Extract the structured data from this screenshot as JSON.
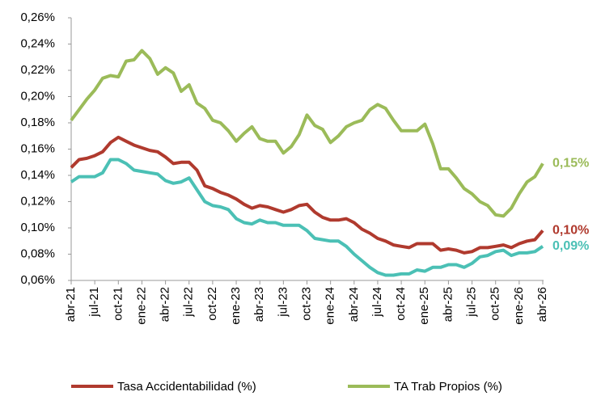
{
  "chart_data": {
    "type": "line",
    "categories": [
      "abr-21",
      null,
      null,
      "jul-21",
      null,
      null,
      "oct-21",
      null,
      null,
      "ene-22",
      null,
      null,
      "abr-22",
      null,
      null,
      "jul-22",
      null,
      null,
      "oct-22",
      null,
      null,
      "ene-23",
      null,
      null,
      "abr-23",
      null,
      null,
      "jul-23",
      null,
      null,
      "oct-23",
      null,
      null,
      "ene-24",
      null,
      null,
      "abr-24",
      null,
      null,
      "jul-24",
      null,
      null,
      "oct-24",
      null,
      null,
      "ene-25",
      null,
      null,
      "abr-25",
      null,
      null,
      "jul-25",
      null,
      null,
      "oct-25",
      null,
      null,
      "ene-26",
      null,
      null,
      "abr-26"
    ],
    "series": [
      {
        "name": "Tasa Accidentabilidad (%)",
        "color": "#b03a2e",
        "end_label": "0,10%",
        "values": [
          0.146,
          0.152,
          0.153,
          0.155,
          0.158,
          0.165,
          0.169,
          0.166,
          0.163,
          0.161,
          0.159,
          0.158,
          0.154,
          0.149,
          0.15,
          0.15,
          0.144,
          0.132,
          0.13,
          0.127,
          0.125,
          0.122,
          0.118,
          0.115,
          0.117,
          0.116,
          0.114,
          0.112,
          0.114,
          0.117,
          0.118,
          0.112,
          0.108,
          0.106,
          0.106,
          0.107,
          0.104,
          0.099,
          0.096,
          0.092,
          0.09,
          0.087,
          0.086,
          0.085,
          0.088,
          0.088,
          0.088,
          0.083,
          0.084,
          0.083,
          0.081,
          0.082,
          0.085,
          0.085,
          0.086,
          0.087,
          0.085,
          0.088,
          0.09,
          0.091,
          0.098
        ]
      },
      {
        "name": "TA Trab Propios (%)",
        "color": "#9bbb59",
        "end_label": "0,15%",
        "values": [
          0.182,
          0.19,
          0.198,
          0.205,
          0.214,
          0.216,
          0.215,
          0.227,
          0.228,
          0.235,
          0.229,
          0.217,
          0.222,
          0.218,
          0.204,
          0.209,
          0.195,
          0.191,
          0.182,
          0.18,
          0.174,
          0.166,
          0.172,
          0.177,
          0.168,
          0.166,
          0.166,
          0.157,
          0.162,
          0.171,
          0.186,
          0.178,
          0.175,
          0.165,
          0.17,
          0.177,
          0.18,
          0.182,
          0.19,
          0.194,
          0.191,
          0.182,
          0.174,
          0.174,
          0.174,
          0.179,
          0.164,
          0.145,
          0.145,
          0.138,
          0.13,
          0.126,
          0.12,
          0.117,
          0.11,
          0.109,
          0.115,
          0.126,
          0.135,
          0.139,
          0.149
        ]
      },
      {
        "color": "#4bc0b5",
        "end_label": "0,09%",
        "values": [
          0.135,
          0.139,
          0.139,
          0.139,
          0.142,
          0.152,
          0.152,
          0.149,
          0.144,
          0.143,
          0.142,
          0.141,
          0.136,
          0.134,
          0.135,
          0.138,
          0.129,
          0.12,
          0.117,
          0.116,
          0.114,
          0.107,
          0.104,
          0.103,
          0.106,
          0.104,
          0.104,
          0.102,
          0.102,
          0.102,
          0.098,
          0.092,
          0.091,
          0.09,
          0.09,
          0.086,
          0.08,
          0.075,
          0.07,
          0.066,
          0.064,
          0.064,
          0.065,
          0.065,
          0.068,
          0.067,
          0.07,
          0.07,
          0.072,
          0.072,
          0.07,
          0.073,
          0.078,
          0.079,
          0.082,
          0.083,
          0.079,
          0.081,
          0.081,
          0.082,
          0.086
        ]
      }
    ],
    "ylim": [
      0.06,
      0.26
    ],
    "yticks": [
      {
        "value": 0.06,
        "label": "0,06%"
      },
      {
        "value": 0.08,
        "label": "0,08%"
      },
      {
        "value": 0.1,
        "label": "0,10%"
      },
      {
        "value": 0.12,
        "label": "0,12%"
      },
      {
        "value": 0.14,
        "label": "0,14%"
      },
      {
        "value": 0.16,
        "label": "0,16%"
      },
      {
        "value": 0.18,
        "label": "0,18%"
      },
      {
        "value": 0.2,
        "label": "0,20%"
      },
      {
        "value": 0.22,
        "label": "0,22%"
      },
      {
        "value": 0.24,
        "label": "0,24%"
      },
      {
        "value": 0.26,
        "label": "0,26%"
      }
    ],
    "grid": false,
    "legend": "bottom"
  }
}
